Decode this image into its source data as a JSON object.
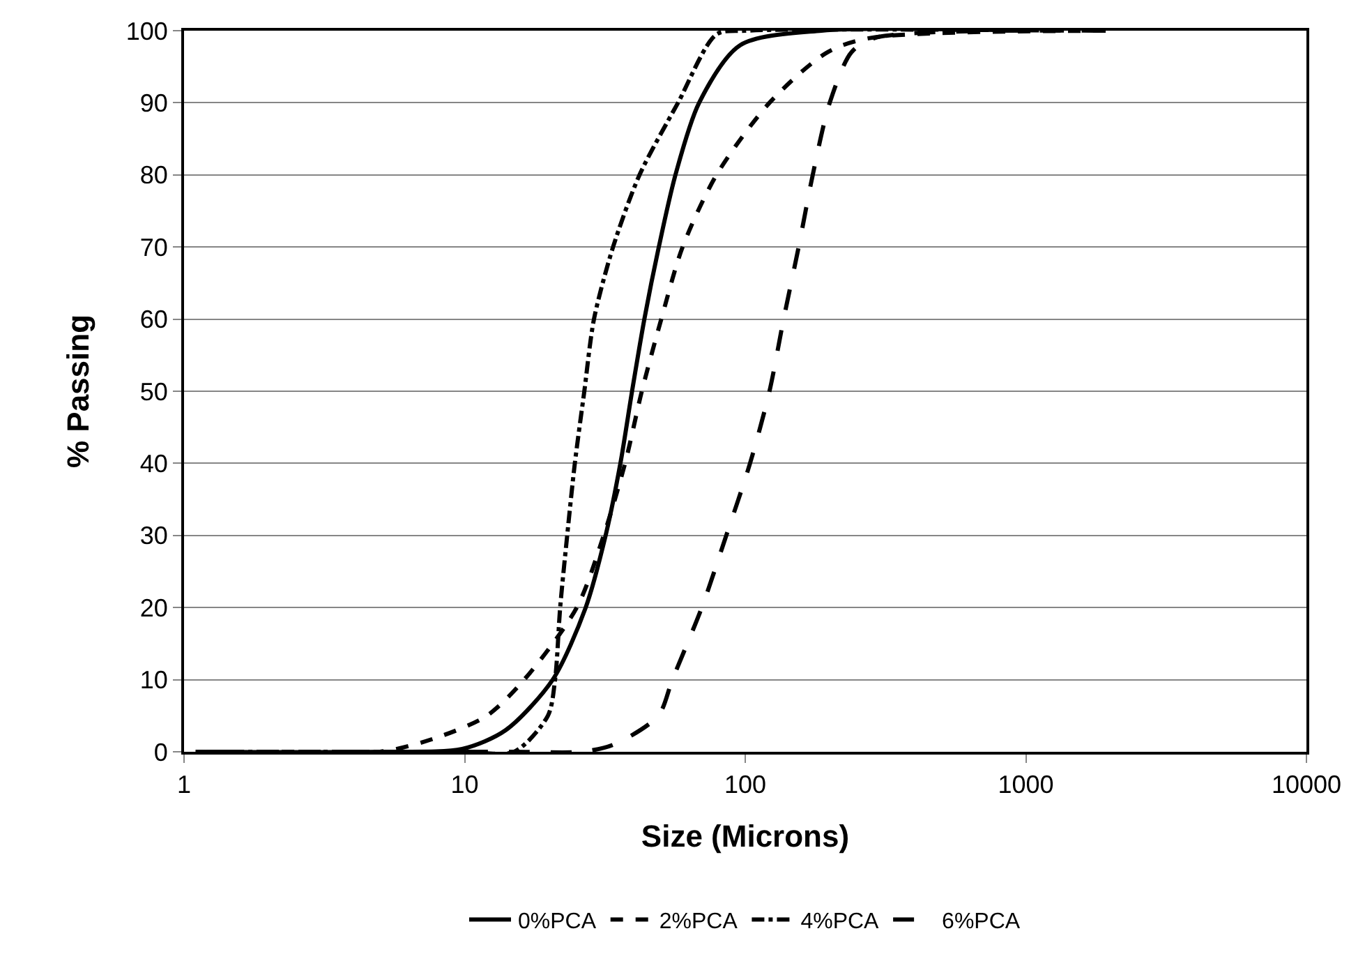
{
  "chart_data": {
    "type": "line",
    "xlabel": "Size (Microns)",
    "ylabel": "% Passing",
    "log": "x",
    "grid": "y",
    "legend": "bottom",
    "marker": "none",
    "xlim": [
      1,
      10000
    ],
    "xticks": [
      1,
      10,
      100,
      1000,
      10000
    ],
    "ylim": [
      0,
      100
    ],
    "yticks": [
      0,
      10,
      20,
      30,
      40,
      50,
      60,
      70,
      80,
      90,
      100
    ],
    "series": [
      {
        "name": "0%PCA",
        "color": "#000000",
        "line_style": "solid",
        "x": [
          1.1,
          5,
          9.8,
          14,
          20.6,
          27,
          31.8,
          35.9,
          39.5,
          43.7,
          49.2,
          56.4,
          68.5,
          96,
          187,
          1000
        ],
        "values": [
          0,
          0,
          0.4,
          3,
          10,
          20,
          30,
          40,
          50,
          60,
          70,
          80,
          90,
          98,
          100,
          100
        ]
      },
      {
        "name": "2%PCA",
        "color": "#000000",
        "line_style": "dashed",
        "x": [
          1.1,
          5,
          8,
          12,
          16.3,
          25.1,
          31.3,
          37.3,
          42.8,
          50.2,
          59.8,
          79,
          122,
          196,
          280,
          2000
        ],
        "values": [
          0,
          0,
          2,
          5,
          10,
          20,
          30,
          40,
          50,
          60,
          70,
          80,
          90,
          97,
          99,
          100
        ]
      },
      {
        "name": "4%PCA",
        "color": "#000000",
        "line_style": "dashdot",
        "x": [
          1.2,
          10,
          15,
          19.8,
          21,
          21.9,
          23.2,
          24.7,
          26.7,
          28.9,
          33.8,
          42,
          57.6,
          79,
          100,
          1500
        ],
        "values": [
          0,
          0,
          0,
          5,
          10,
          20,
          30,
          40,
          50,
          60,
          70,
          80,
          90,
          99.5,
          100,
          100
        ]
      },
      {
        "name": "6%PCA",
        "color": "#000000",
        "line_style": "longdash",
        "x": [
          1.3,
          15,
          26,
          34,
          49,
          55,
          70,
          85.6,
          104,
          122,
          137,
          155,
          174,
          200,
          239,
          290,
          1800
        ],
        "values": [
          0,
          0,
          0,
          1,
          5,
          10,
          20,
          30,
          40,
          50,
          60,
          70,
          80,
          90,
          97,
          99,
          100
        ]
      }
    ]
  }
}
